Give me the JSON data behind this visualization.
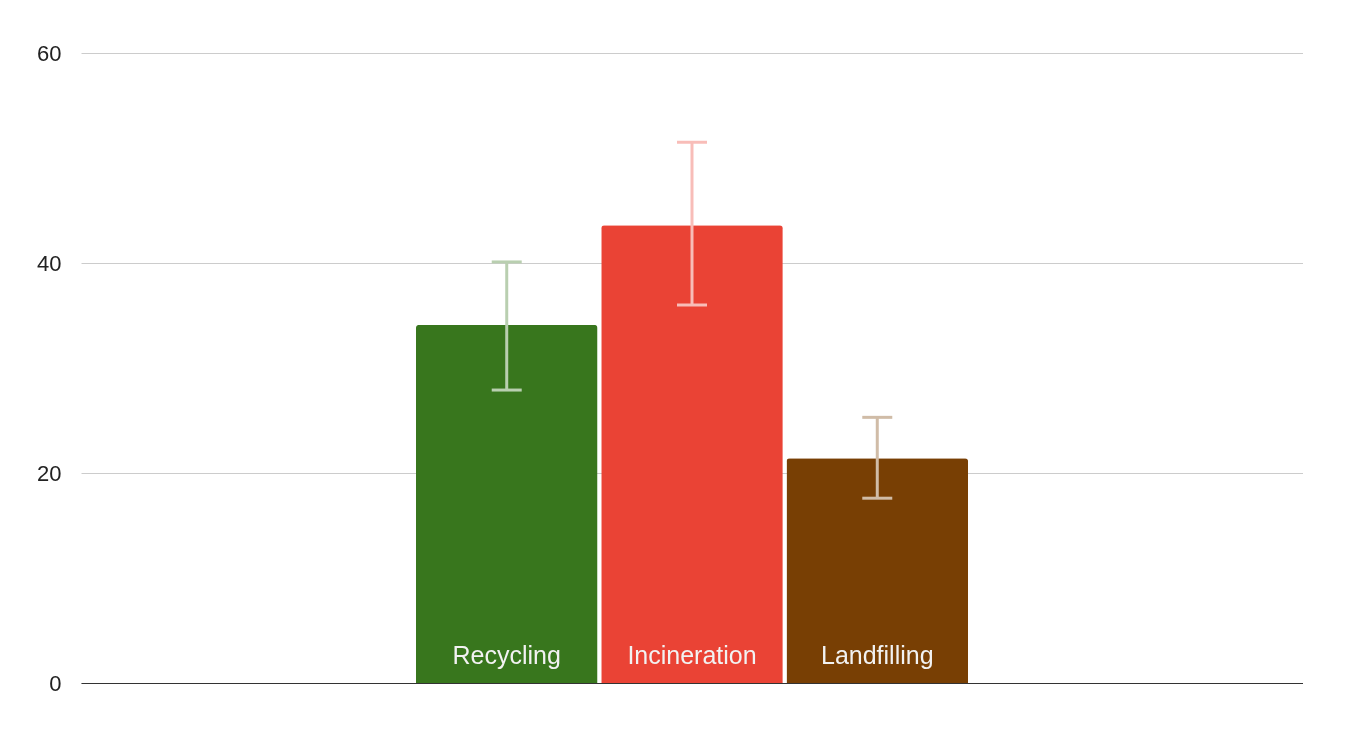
{
  "chart_data": {
    "type": "bar",
    "categories": [
      null
    ],
    "series": [
      {
        "name": "Recycling",
        "color": "#38761d",
        "values": [
          34.1
        ],
        "errors": [
          [
            27.9,
            40.1
          ]
        ]
      },
      {
        "name": "Incineration",
        "color": "#ea4335",
        "values": [
          43.6
        ],
        "errors": [
          [
            36.0,
            51.5
          ]
        ]
      },
      {
        "name": "Landfilling",
        "color": "#783f04",
        "values": [
          21.4
        ],
        "errors": [
          [
            17.6,
            25.3
          ]
        ]
      }
    ],
    "ylim": [
      0,
      60
    ],
    "yticks": [
      0,
      20,
      40,
      60
    ],
    "grid": "y",
    "tick_labels": "y",
    "legend": false
  }
}
